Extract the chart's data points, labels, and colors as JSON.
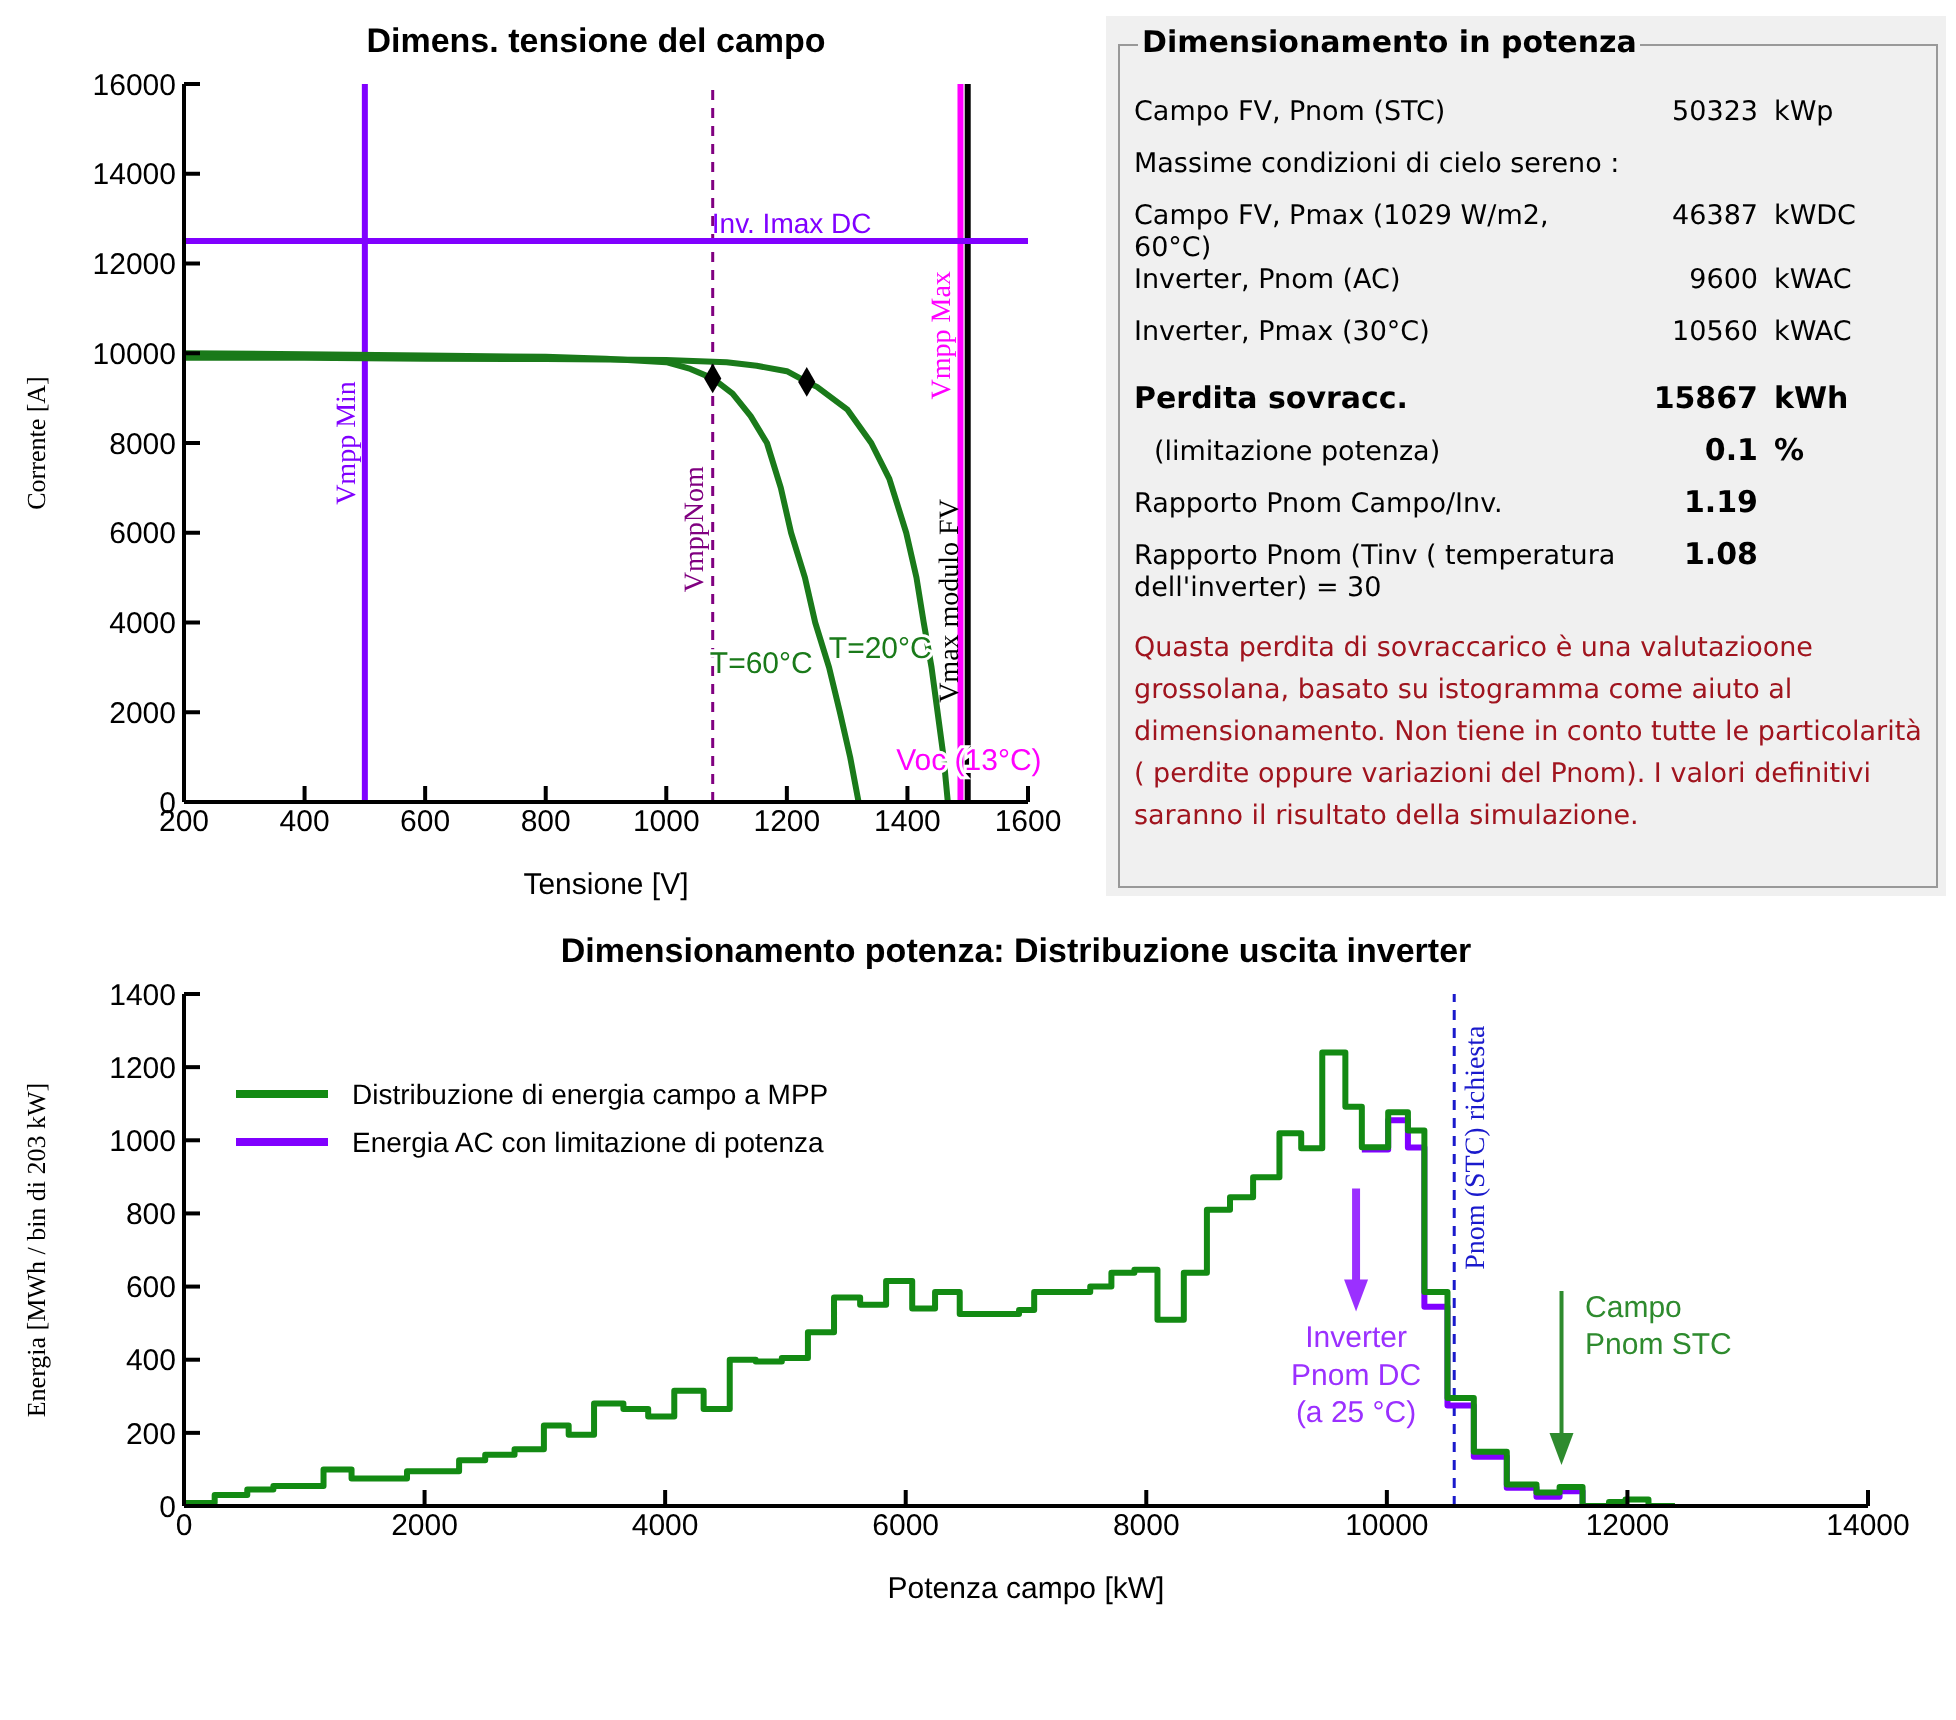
{
  "chart_data": [
    {
      "type": "line",
      "title": "Dimens. tensione del campo",
      "xlabel": "Tensione [V]",
      "ylabel": "Corrente [A]",
      "xlim": [
        200,
        1600
      ],
      "xticks": [
        200,
        400,
        600,
        800,
        1000,
        1200,
        1400,
        1600
      ],
      "ylim": [
        0,
        16000
      ],
      "yticks": [
        0,
        2000,
        4000,
        6000,
        8000,
        10000,
        12000,
        14000,
        16000
      ],
      "grid": false,
      "legend": false,
      "series": [
        {
          "color": "#1a7a1a",
          "x": [
            200,
            400,
            600,
            800,
            1000,
            1100,
            1150,
            1200,
            1233,
            1250,
            1300,
            1340,
            1370,
            1398,
            1415,
            1427,
            1440,
            1450,
            1460,
            1467
          ],
          "values": [
            9900,
            9900,
            9880,
            9870,
            9850,
            9800,
            9720,
            9600,
            9360,
            9250,
            8750,
            8000,
            7200,
            6000,
            5000,
            4000,
            3000,
            2000,
            1000,
            0
          ]
        },
        {
          "color": "#1a7a1a",
          "x": [
            200,
            400,
            600,
            800,
            900,
            1000,
            1040,
            1077,
            1110,
            1140,
            1167,
            1190,
            1207,
            1230,
            1247,
            1270,
            1288,
            1305,
            1319
          ],
          "values": [
            10000,
            9980,
            9950,
            9920,
            9880,
            9800,
            9650,
            9440,
            9100,
            8600,
            8000,
            7000,
            6000,
            5000,
            4000,
            3000,
            2000,
            1000,
            0
          ]
        },
        {
          "type": "scatter",
          "marker": "diamond",
          "color": "#000000",
          "x": [
            1077,
            1233
          ],
          "values": [
            9440,
            9360
          ]
        }
      ],
      "ref_lines": [
        {
          "axis": "x",
          "value": 500,
          "label": "Vmpp Min",
          "color": "#8000ff"
        },
        {
          "axis": "x",
          "value": 1077,
          "label": "VmppNom",
          "color": "#800080",
          "line_style": "dashed"
        },
        {
          "axis": "x",
          "value": 1488,
          "label": "Vmpp Max",
          "color": "#ff00ff"
        },
        {
          "axis": "x",
          "value": 1500,
          "label": "Vmax modulo FV",
          "color": "#000000"
        },
        {
          "axis": "y",
          "value": 12500,
          "label": "Inv. Imax DC",
          "color": "#8000ff"
        }
      ],
      "annotations": [
        "T=20°C",
        "T=60°C",
        "Voc (13°C)"
      ]
    },
    {
      "type": "other",
      "title": "Dimensionamento in potenza",
      "annotations": [
        "Campo FV, Pnom (STC)\t50323\tkWp",
        "Massime condizioni di cielo sereno :",
        "Campo FV, Pmax (1029 W/m2, 60°C)\t46387\tkWDC",
        "Inverter, Pnom (AC)\t9600\tkWAC",
        "Inverter, Pmax (30°C)\t10560\tkWAC",
        "Perdita sovracc.\t15867\tkWh",
        "(limitazione potenza)\t0.1\t%",
        "Rapporto Pnom Campo/Inv.\t1.19",
        "Rapporto Pnom (Tinv ( temperatura dell'inverter) = 30\t1.08",
        "Quasta perdita di sovraccarico è una valutazioone grossolana, basato su istogramma come aiuto al dimensionamento. Non tiene in conto tutte le particolarità ( perdite oppure variazioni del Pnom). I valori definitivi saranno il risultato della simulazione."
      ]
    },
    {
      "type": "step",
      "title": "Dimensionamento potenza: Distribuzione uscita inverter",
      "xlabel": "Potenza campo [kW]",
      "ylabel": "Energia [MWh / bin di 203 kW]",
      "xlim": [
        0,
        14000
      ],
      "xticks": [
        0,
        2000,
        4000,
        6000,
        8000,
        10000,
        12000,
        14000
      ],
      "ylim": [
        0,
        1400
      ],
      "yticks": [
        0,
        200,
        400,
        600,
        800,
        1000,
        1200,
        1400
      ],
      "grid": false,
      "legend": "top left",
      "x": [
        0,
        255,
        526,
        743,
        1160,
        1393,
        1854,
        2287,
        2504,
        2748,
        2992,
        3198,
        3409,
        3653,
        3859,
        4076,
        4320,
        4537,
        4753,
        4970,
        5187,
        5404,
        5621,
        5837,
        6054,
        6244,
        6449,
        6942,
        7068,
        7534,
        7710,
        7901,
        8093,
        8312,
        8504,
        8696,
        8888,
        9107,
        9288,
        9463,
        9655,
        9792,
        10011,
        10175,
        10312,
        10504,
        10723,
        10997,
        11244,
        11436,
        11627,
        11847,
        11984,
        12175,
        12395
      ],
      "series": [
        {
          "name": "Distribuzione di energia campo a MPP",
          "color": "#138a13",
          "values": [
            8,
            30,
            45,
            55,
            100,
            75,
            95,
            125,
            140,
            155,
            220,
            195,
            280,
            265,
            245,
            315,
            265,
            400,
            395,
            405,
            475,
            570,
            550,
            615,
            540,
            585,
            525,
            536,
            585,
            600,
            638,
            646,
            509,
            638,
            810,
            844,
            899,
            1019,
            978,
            1240,
            1092,
            981,
            1077,
            1027,
            585,
            295,
            148,
            59,
            37,
            52,
            0,
            11,
            18,
            0,
            0
          ]
        },
        {
          "name": "Energia AC con limitazione di potenza",
          "color": "#8000ff",
          "values": [
            null,
            null,
            null,
            null,
            null,
            null,
            null,
            null,
            null,
            null,
            null,
            null,
            null,
            null,
            null,
            null,
            null,
            null,
            null,
            null,
            null,
            null,
            null,
            null,
            null,
            null,
            null,
            null,
            null,
            null,
            null,
            null,
            null,
            null,
            null,
            null,
            null,
            null,
            null,
            null,
            null,
            975,
            1055,
            980,
            545,
            275,
            135,
            50,
            25,
            40,
            0,
            null,
            null,
            null,
            null
          ]
        }
      ],
      "ref_lines": [
        {
          "axis": "x",
          "value": 10560,
          "label": "Pnom (STC) richiesta",
          "color": "#1a1acc",
          "line_style": "dashed"
        }
      ],
      "annotations": [
        "Inverter\nPnom DC\n(a 25 °C)",
        "Campo\nPnom STC"
      ]
    }
  ]
}
